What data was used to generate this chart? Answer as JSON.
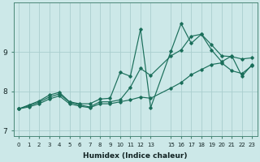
{
  "xlabel": "Humidex (Indice chaleur)",
  "bg_color": "#cce8e8",
  "grid_color": "#aacece",
  "line_color": "#1a6e5a",
  "xlim": [
    -0.5,
    23.5
  ],
  "ylim": [
    6.85,
    10.25
  ],
  "yticks": [
    7,
    8,
    9
  ],
  "xtick_positions": [
    0,
    1,
    2,
    3,
    4,
    5,
    6,
    7,
    8,
    9,
    10,
    11,
    12,
    13,
    15,
    16,
    17,
    18,
    19,
    20,
    21,
    22,
    23
  ],
  "xtick_labels": [
    "0",
    "1",
    "2",
    "3",
    "4",
    "5",
    "6",
    "7",
    "8",
    "9",
    "10",
    "11",
    "12",
    "13",
    "15",
    "16",
    "17",
    "18",
    "19",
    "20",
    "21",
    "22",
    "23"
  ],
  "line_spiky_x": [
    0,
    1,
    2,
    3,
    4,
    5,
    6,
    7,
    8,
    9,
    10,
    11,
    12,
    13,
    15,
    16,
    17,
    18,
    19,
    20,
    21,
    22,
    23
  ],
  "line_spiky_y": [
    7.55,
    7.65,
    7.75,
    7.9,
    7.97,
    7.73,
    7.68,
    7.68,
    7.8,
    7.82,
    8.48,
    8.38,
    9.58,
    7.58,
    9.02,
    9.72,
    9.22,
    9.45,
    9.05,
    8.75,
    8.9,
    8.38,
    8.68
  ],
  "line_mid_x": [
    0,
    1,
    2,
    3,
    4,
    5,
    6,
    7,
    8,
    9,
    10,
    11,
    12,
    13,
    15,
    16,
    17,
    18,
    19,
    20,
    21,
    22,
    23
  ],
  "line_mid_y": [
    7.55,
    7.63,
    7.72,
    7.85,
    7.93,
    7.72,
    7.65,
    7.6,
    7.73,
    7.73,
    7.78,
    8.1,
    8.58,
    8.4,
    8.9,
    9.05,
    9.4,
    9.45,
    9.18,
    8.9,
    8.88,
    8.82,
    8.85
  ],
  "line_smooth_x": [
    0,
    1,
    2,
    3,
    4,
    5,
    6,
    7,
    8,
    9,
    10,
    11,
    12,
    13,
    15,
    16,
    17,
    18,
    19,
    20,
    21,
    22,
    23
  ],
  "line_smooth_y": [
    7.55,
    7.6,
    7.68,
    7.8,
    7.88,
    7.68,
    7.62,
    7.58,
    7.68,
    7.68,
    7.73,
    7.78,
    7.85,
    7.82,
    8.08,
    8.22,
    8.42,
    8.55,
    8.68,
    8.72,
    8.52,
    8.45,
    8.65
  ]
}
